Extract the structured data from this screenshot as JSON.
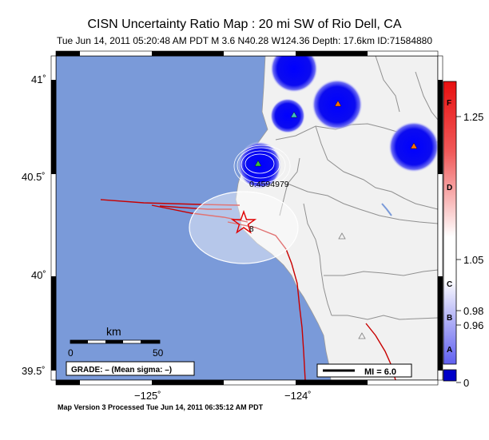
{
  "header": {
    "title": "CISN Uncertainty Ratio Map : 20 mi SW of Rio Dell, CA",
    "subtitle": "Tue Jun 14, 2011 05:20:48 AM PDT   M 3.6   N40.28 W124.36   Depth: 17.6km   ID:71584880"
  },
  "footer": {
    "text": "Map Version 3 Processed Tue Jun 14, 2011 06:35:12 AM PDT"
  },
  "axes": {
    "lat_ticks": [
      "41˚",
      "40.5˚",
      "40˚",
      "39.5˚"
    ],
    "lon_ticks": [
      "−125˚",
      "−124˚"
    ]
  },
  "scale_bar": {
    "unit": "km",
    "labels": [
      "0",
      "50"
    ]
  },
  "grade_box": {
    "text": "GRADE: – (Mean sigma: –)"
  },
  "mi_legend": {
    "text": "MI = 6.0"
  },
  "contour_labels": {
    "main": "0.4594979",
    "star": "8"
  },
  "colorbar": {
    "values": [
      "1.25",
      "1.05",
      "0.98",
      "0.96",
      "0"
    ],
    "grades": [
      "F",
      "D",
      "C",
      "B",
      "A"
    ],
    "colors": {
      "top": "#e81010",
      "mid": "#ffffff",
      "bottom": "#0000c8"
    }
  },
  "colors": {
    "ocean": "#7a9ad9",
    "land": "#f1f1f1",
    "fault": "#c80000",
    "blue_blob": "#0c0cf0"
  }
}
